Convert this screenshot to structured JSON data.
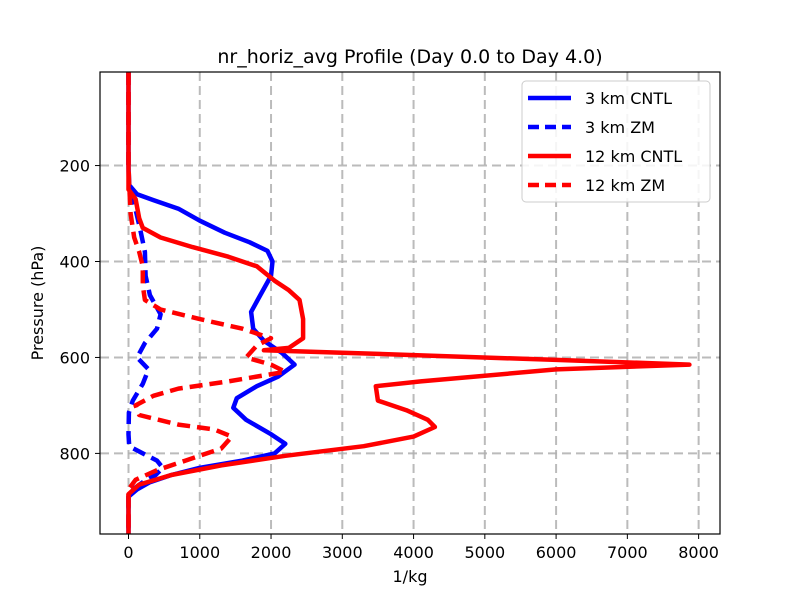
{
  "chart_data": {
    "type": "line",
    "title": "nr_horiz_avg Profile (Day 0.0 to Day 4.0)",
    "xlabel": "1/kg",
    "ylabel": "Pressure (hPa)",
    "xlim": [
      -400,
      8300
    ],
    "ylim": [
      968,
      5
    ],
    "y_inverted": true,
    "grid": true,
    "legend_position": "top-right",
    "xticks": [
      0,
      1000,
      2000,
      3000,
      4000,
      5000,
      6000,
      7000,
      8000
    ],
    "yticks": [
      200,
      400,
      600,
      800
    ],
    "series": [
      {
        "name": "3 km CNTL",
        "color": "#0000ff",
        "linestyle": "solid",
        "points": [
          [
            0,
            5
          ],
          [
            0,
            100
          ],
          [
            0,
            200
          ],
          [
            5,
            240
          ],
          [
            120,
            260
          ],
          [
            350,
            272
          ],
          [
            700,
            290
          ],
          [
            1000,
            315
          ],
          [
            1350,
            340
          ],
          [
            1700,
            360
          ],
          [
            1950,
            378
          ],
          [
            2020,
            400
          ],
          [
            2000,
            430
          ],
          [
            1850,
            470
          ],
          [
            1720,
            505
          ],
          [
            1750,
            540
          ],
          [
            1900,
            565
          ],
          [
            2150,
            590
          ],
          [
            2330,
            615
          ],
          [
            2100,
            640
          ],
          [
            1800,
            660
          ],
          [
            1520,
            685
          ],
          [
            1470,
            705
          ],
          [
            1650,
            730
          ],
          [
            2000,
            760
          ],
          [
            2200,
            780
          ],
          [
            2050,
            800
          ],
          [
            1600,
            815
          ],
          [
            1000,
            830
          ],
          [
            600,
            845
          ],
          [
            300,
            860
          ],
          [
            120,
            875
          ],
          [
            0,
            890
          ],
          [
            0,
            968
          ]
        ]
      },
      {
        "name": "3 km ZM",
        "color": "#0000ff",
        "linestyle": "dashed",
        "points": [
          [
            0,
            5
          ],
          [
            0,
            200
          ],
          [
            10,
            240
          ],
          [
            80,
            280
          ],
          [
            160,
            330
          ],
          [
            230,
            380
          ],
          [
            240,
            430
          ],
          [
            300,
            470
          ],
          [
            450,
            510
          ],
          [
            400,
            540
          ],
          [
            230,
            570
          ],
          [
            120,
            600
          ],
          [
            280,
            625
          ],
          [
            200,
            655
          ],
          [
            60,
            690
          ],
          [
            5,
            715
          ],
          [
            0,
            760
          ],
          [
            10,
            785
          ],
          [
            200,
            800
          ],
          [
            400,
            815
          ],
          [
            480,
            830
          ],
          [
            380,
            845
          ],
          [
            200,
            860
          ],
          [
            60,
            875
          ],
          [
            0,
            890
          ],
          [
            0,
            968
          ]
        ]
      },
      {
        "name": "12 km CNTL",
        "color": "#ff0000",
        "linestyle": "solid",
        "points": [
          [
            0,
            5
          ],
          [
            0,
            100
          ],
          [
            0,
            200
          ],
          [
            0,
            250
          ],
          [
            100,
            270
          ],
          [
            150,
            310
          ],
          [
            200,
            330
          ],
          [
            450,
            350
          ],
          [
            900,
            370
          ],
          [
            1400,
            390
          ],
          [
            1800,
            410
          ],
          [
            2050,
            440
          ],
          [
            2250,
            460
          ],
          [
            2400,
            480
          ],
          [
            2450,
            520
          ],
          [
            2450,
            560
          ],
          [
            2250,
            580
          ],
          [
            1900,
            585
          ],
          [
            3000,
            590
          ],
          [
            6000,
            605
          ],
          [
            7870,
            615
          ],
          [
            6000,
            625
          ],
          [
            4100,
            650
          ],
          [
            3470,
            660
          ],
          [
            3500,
            690
          ],
          [
            3900,
            710
          ],
          [
            4200,
            730
          ],
          [
            4300,
            745
          ],
          [
            4000,
            765
          ],
          [
            3300,
            785
          ],
          [
            2200,
            805
          ],
          [
            1300,
            825
          ],
          [
            600,
            845
          ],
          [
            150,
            865
          ],
          [
            0,
            885
          ],
          [
            0,
            968
          ]
        ]
      },
      {
        "name": "12 km ZM",
        "color": "#ff0000",
        "linestyle": "dashed",
        "points": [
          [
            0,
            5
          ],
          [
            0,
            100
          ],
          [
            0,
            200
          ],
          [
            10,
            240
          ],
          [
            30,
            300
          ],
          [
            80,
            350
          ],
          [
            150,
            380
          ],
          [
            200,
            410
          ],
          [
            200,
            450
          ],
          [
            230,
            480
          ],
          [
            450,
            500
          ],
          [
            1000,
            520
          ],
          [
            1600,
            540
          ],
          [
            2000,
            560
          ],
          [
            1800,
            575
          ],
          [
            1650,
            600
          ],
          [
            2000,
            615
          ],
          [
            2200,
            630
          ],
          [
            1400,
            650
          ],
          [
            700,
            665
          ],
          [
            350,
            680
          ],
          [
            100,
            700
          ],
          [
            150,
            720
          ],
          [
            700,
            740
          ],
          [
            1200,
            750
          ],
          [
            1450,
            765
          ],
          [
            1300,
            790
          ],
          [
            800,
            815
          ],
          [
            400,
            835
          ],
          [
            100,
            855
          ],
          [
            0,
            875
          ],
          [
            0,
            968
          ]
        ]
      }
    ]
  }
}
